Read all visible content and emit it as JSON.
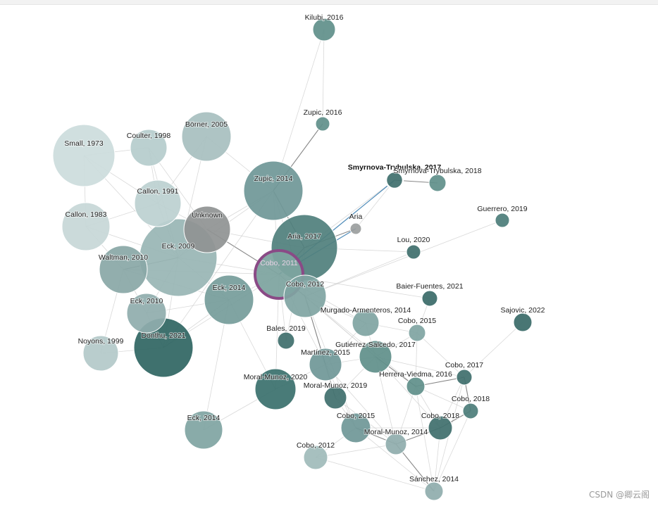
{
  "graph": {
    "nodes": [
      {
        "id": "kilubi2016",
        "label": "Kilubi, 2016",
        "color": "#5f8f8a"
      },
      {
        "id": "zupic2016",
        "label": "Zupic, 2016",
        "color": "#5f8f8a"
      },
      {
        "id": "smyrnova2017",
        "label": "Smyrnova-Trybulska, 2017",
        "color": "#3f6f6d",
        "bold": true
      },
      {
        "id": "smyrnova2018",
        "label": "Smyrnova-Trybulska, 2018",
        "color": "#5f8f8a"
      },
      {
        "id": "guerrero2019",
        "label": "Guerrero, 2019",
        "color": "#4c7d79"
      },
      {
        "id": "borner2005",
        "label": "Börner, 2005",
        "color": "#a7bfbf"
      },
      {
        "id": "coulter1998",
        "label": "Coulter, 1998",
        "color": "#b5cccc"
      },
      {
        "id": "small1973",
        "label": "Small, 1973",
        "color": "#ccdcdc"
      },
      {
        "id": "zupic2014",
        "label": "Zupic, 2014",
        "color": "#6f9797"
      },
      {
        "id": "callon1991",
        "label": "Callon, 1991",
        "color": "#bcd0d0"
      },
      {
        "id": "unknown",
        "label": "Unknown",
        "color": "#8f9393"
      },
      {
        "id": "aria",
        "label": "Aria",
        "color": "#9b9e9e"
      },
      {
        "id": "callon1983",
        "label": "Callon, 1983",
        "color": "#c7d7d7"
      },
      {
        "id": "aria2017",
        "label": "Aria, 2017",
        "color": "#4f7f7c"
      },
      {
        "id": "lou2020",
        "label": "Lou, 2020",
        "color": "#3f6f6c"
      },
      {
        "id": "eck2009",
        "label": "Eck, 2009",
        "color": "#98b5b4"
      },
      {
        "id": "waltman2010",
        "label": "Waltman, 2010",
        "color": "#89a7a6"
      },
      {
        "id": "cobo2011",
        "label": "Cobo, 2011",
        "color": "#5f8f8a",
        "selected": true
      },
      {
        "id": "cobo2012a",
        "label": "Cobo, 2012",
        "color": "#7fa4a2"
      },
      {
        "id": "eck2014a",
        "label": "Eck, 2014",
        "color": "#759c9a"
      },
      {
        "id": "baier2021",
        "label": "Baier-Fuentes, 2021",
        "color": "#3a6a68"
      },
      {
        "id": "sajovic2022",
        "label": "Sajovic, 2022",
        "color": "#3a6a68"
      },
      {
        "id": "eck2010",
        "label": "Eck, 2010",
        "color": "#8fadac"
      },
      {
        "id": "murgado2014",
        "label": "Murgado-Armenteros, 2014",
        "color": "#7fa4a2"
      },
      {
        "id": "cobo2015a",
        "label": "Cobo, 2015",
        "color": "#7fa4a2"
      },
      {
        "id": "bales2019",
        "label": "Bales, 2019",
        "color": "#3f6f6c"
      },
      {
        "id": "donthu2021",
        "label": "Donthu, 2021",
        "color": "#2f6562"
      },
      {
        "id": "noyons1999",
        "label": "Noyons, 1999",
        "color": "#b3c9c9"
      },
      {
        "id": "gutierrez2017",
        "label": "Gutiérrez-Salcedo, 2017",
        "color": "#5f8f8a"
      },
      {
        "id": "martinez2015",
        "label": "Martínez, 2015",
        "color": "#6f9797"
      },
      {
        "id": "cobo2017",
        "label": "Cobo, 2017",
        "color": "#3f6f6c"
      },
      {
        "id": "herrera2016",
        "label": "Herrera-Viedma, 2016",
        "color": "#5f8f8a"
      },
      {
        "id": "moral2020",
        "label": "Moral-Munoz, 2020",
        "color": "#3a706c"
      },
      {
        "id": "moral2019",
        "label": "Moral-Munoz, 2019",
        "color": "#3f6f6c"
      },
      {
        "id": "cobo2018a",
        "label": "Cobo, 2018",
        "color": "#4c7d79"
      },
      {
        "id": "cobo2015b",
        "label": "Cobo, 2015",
        "color": "#6f9797"
      },
      {
        "id": "cobo2018b",
        "label": "Cobo, 2018",
        "color": "#3f6f6c"
      },
      {
        "id": "eck2014b",
        "label": "Eck, 2014",
        "color": "#7fa4a2"
      },
      {
        "id": "moral2014",
        "label": "Moral-Munoz, 2014",
        "color": "#8fadac"
      },
      {
        "id": "cobo2012b",
        "label": "Cobo, 2012",
        "color": "#9fbbba"
      },
      {
        "id": "sanchez2014",
        "label": "Sánchez, 2014",
        "color": "#8fadac"
      }
    ],
    "edges": [
      [
        "kilubi2016",
        "zupic2014"
      ],
      [
        "kilubi2016",
        "zupic2016"
      ],
      [
        "zupic2016",
        "zupic2014"
      ],
      [
        "smyrnova2017",
        "smyrnova2018"
      ],
      [
        "smyrnova2017",
        "aria2017"
      ],
      [
        "smyrnova2017",
        "cobo2011"
      ],
      [
        "aria",
        "aria2017"
      ],
      [
        "aria",
        "cobo2011"
      ],
      [
        "aria",
        "smyrnova2017"
      ],
      [
        "small1973",
        "callon1983"
      ],
      [
        "small1973",
        "eck2009"
      ],
      [
        "small1973",
        "callon1991"
      ],
      [
        "small1973",
        "coulter1998"
      ],
      [
        "coulter1998",
        "callon1991"
      ],
      [
        "coulter1998",
        "eck2009"
      ],
      [
        "coulter1998",
        "unknown"
      ],
      [
        "borner2005",
        "zupic2014"
      ],
      [
        "borner2005",
        "eck2009"
      ],
      [
        "borner2005",
        "callon1991"
      ],
      [
        "callon1991",
        "callon1983"
      ],
      [
        "callon1991",
        "eck2009"
      ],
      [
        "callon1991",
        "unknown"
      ],
      [
        "callon1983",
        "eck2009"
      ],
      [
        "callon1983",
        "waltman2010"
      ],
      [
        "unknown",
        "eck2009"
      ],
      [
        "unknown",
        "cobo2011"
      ],
      [
        "unknown",
        "zupic2014"
      ],
      [
        "unknown",
        "aria2017"
      ],
      [
        "eck2009",
        "waltman2010"
      ],
      [
        "eck2009",
        "eck2010"
      ],
      [
        "eck2009",
        "eck2014a"
      ],
      [
        "eck2009",
        "cobo2011"
      ],
      [
        "eck2009",
        "zupic2014"
      ],
      [
        "eck2009",
        "donthu2021"
      ],
      [
        "waltman2010",
        "eck2010"
      ],
      [
        "waltman2010",
        "eck2014a"
      ],
      [
        "waltman2010",
        "cobo2011"
      ],
      [
        "waltman2010",
        "noyons1999"
      ],
      [
        "eck2010",
        "donthu2021"
      ],
      [
        "eck2010",
        "eck2014a"
      ],
      [
        "zupic2014",
        "aria2017"
      ],
      [
        "zupic2014",
        "cobo2011"
      ],
      [
        "zupic2014",
        "cobo2012a"
      ],
      [
        "zupic2014",
        "donthu2021"
      ],
      [
        "aria2017",
        "cobo2011"
      ],
      [
        "aria2017",
        "cobo2012a"
      ],
      [
        "aria2017",
        "lou2020"
      ],
      [
        "aria2017",
        "bales2019"
      ],
      [
        "cobo2011",
        "cobo2012a"
      ],
      [
        "cobo2011",
        "eck2014a"
      ],
      [
        "cobo2011",
        "donthu2021"
      ],
      [
        "cobo2011",
        "moral2020"
      ],
      [
        "cobo2011",
        "murgado2014"
      ],
      [
        "cobo2011",
        "gutierrez2017"
      ],
      [
        "cobo2011",
        "martinez2015"
      ],
      [
        "cobo2011",
        "bales2019"
      ],
      [
        "cobo2012a",
        "murgado2014"
      ],
      [
        "cobo2012a",
        "martinez2015"
      ],
      [
        "cobo2012a",
        "gutierrez2017"
      ],
      [
        "cobo2012a",
        "moral2019"
      ],
      [
        "cobo2012a",
        "cobo2015b"
      ],
      [
        "cobo2012a",
        "herrera2016"
      ],
      [
        "eck2014a",
        "donthu2021"
      ],
      [
        "eck2014a",
        "eck2014b"
      ],
      [
        "eck2014a",
        "moral2020"
      ],
      [
        "donthu2021",
        "noyons1999"
      ],
      [
        "murgado2014",
        "cobo2015a"
      ],
      [
        "murgado2014",
        "gutierrez2017"
      ],
      [
        "murgado2014",
        "martinez2015"
      ],
      [
        "cobo2015a",
        "gutierrez2017"
      ],
      [
        "cobo2015a",
        "herrera2016"
      ],
      [
        "cobo2015a",
        "cobo2017"
      ],
      [
        "gutierrez2017",
        "herrera2016"
      ],
      [
        "gutierrez2017",
        "martinez2015"
      ],
      [
        "gutierrez2017",
        "moral2019"
      ],
      [
        "gutierrez2017",
        "cobo2018b"
      ],
      [
        "gutierrez2017",
        "cobo2017"
      ],
      [
        "gutierrez2017",
        "moral2014"
      ],
      [
        "martinez2015",
        "moral2019"
      ],
      [
        "martinez2015",
        "cobo2015b"
      ],
      [
        "martinez2015",
        "moral2014"
      ],
      [
        "herrera2016",
        "cobo2017"
      ],
      [
        "herrera2016",
        "cobo2018a"
      ],
      [
        "herrera2016",
        "cobo2018b"
      ],
      [
        "herrera2016",
        "moral2014"
      ],
      [
        "herrera2016",
        "sanchez2014"
      ],
      [
        "cobo2017",
        "cobo2018a"
      ],
      [
        "cobo2017",
        "cobo2018b"
      ],
      [
        "cobo2017",
        "sanchez2014"
      ],
      [
        "cobo2018a",
        "cobo2018b"
      ],
      [
        "cobo2018a",
        "sanchez2014"
      ],
      [
        "cobo2018b",
        "moral2014"
      ],
      [
        "cobo2018b",
        "sanchez2014"
      ],
      [
        "cobo2018b",
        "cobo2015b"
      ],
      [
        "moral2019",
        "cobo2015b"
      ],
      [
        "moral2019",
        "moral2014"
      ],
      [
        "cobo2015b",
        "moral2014"
      ],
      [
        "cobo2015b",
        "cobo2012b"
      ],
      [
        "cobo2015b",
        "sanchez2014"
      ],
      [
        "moral2014",
        "sanchez2014"
      ],
      [
        "moral2014",
        "cobo2012b"
      ],
      [
        "cobo2012b",
        "sanchez2014"
      ],
      [
        "moral2020",
        "martinez2015"
      ],
      [
        "moral2020",
        "eck2014b"
      ],
      [
        "baier2021",
        "cobo2015a"
      ],
      [
        "baier2021",
        "cobo2011"
      ],
      [
        "sajovic2022",
        "cobo2017"
      ],
      [
        "guerrero2019",
        "cobo2012a"
      ],
      [
        "lou2020",
        "cobo2012a"
      ]
    ]
  },
  "watermark": "CSDN @卿云阁"
}
